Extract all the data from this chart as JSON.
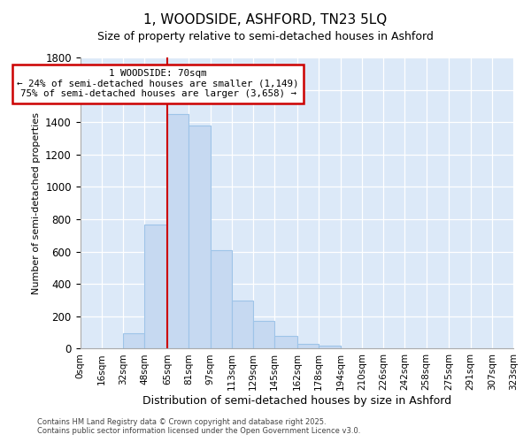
{
  "title": "1, WOODSIDE, ASHFORD, TN23 5LQ",
  "subtitle": "Size of property relative to semi-detached houses in Ashford",
  "xlabel": "Distribution of semi-detached houses by size in Ashford",
  "ylabel": "Number of semi-detached properties",
  "annotation_text_line1": "1 WOODSIDE: 70sqm",
  "annotation_text_line2": "← 24% of semi-detached houses are smaller (1,149)",
  "annotation_text_line3": "75% of semi-detached houses are larger (3,658) →",
  "bin_edges": [
    0,
    16,
    32,
    48,
    65,
    81,
    97,
    113,
    129,
    145,
    162,
    178,
    194,
    210,
    226,
    242,
    258,
    275,
    291,
    307,
    323
  ],
  "bin_labels": [
    "0sqm",
    "16sqm",
    "32sqm",
    "48sqm",
    "65sqm",
    "81sqm",
    "97sqm",
    "113sqm",
    "129sqm",
    "145sqm",
    "162sqm",
    "178sqm",
    "194sqm",
    "210sqm",
    "226sqm",
    "242sqm",
    "258sqm",
    "275sqm",
    "291sqm",
    "307sqm",
    "323sqm"
  ],
  "bar_heights": [
    0,
    2,
    95,
    770,
    1450,
    1380,
    610,
    300,
    170,
    80,
    30,
    20,
    0,
    0,
    0,
    0,
    0,
    0,
    0,
    0
  ],
  "bar_color": "#c6d9f1",
  "bar_edge_color": "#9ec4e8",
  "vline_color": "#cc0000",
  "vline_x": 65,
  "ylim": [
    0,
    1800
  ],
  "yticks": [
    0,
    200,
    400,
    600,
    800,
    1000,
    1200,
    1400,
    1600,
    1800
  ],
  "plot_background": "#dce9f8",
  "fig_background": "#ffffff",
  "grid_color": "#ffffff",
  "annotation_box_facecolor": "#ffffff",
  "annotation_box_edgecolor": "#cc0000",
  "footer_line1": "Contains HM Land Registry data © Crown copyright and database right 2025.",
  "footer_line2": "Contains public sector information licensed under the Open Government Licence v3.0."
}
